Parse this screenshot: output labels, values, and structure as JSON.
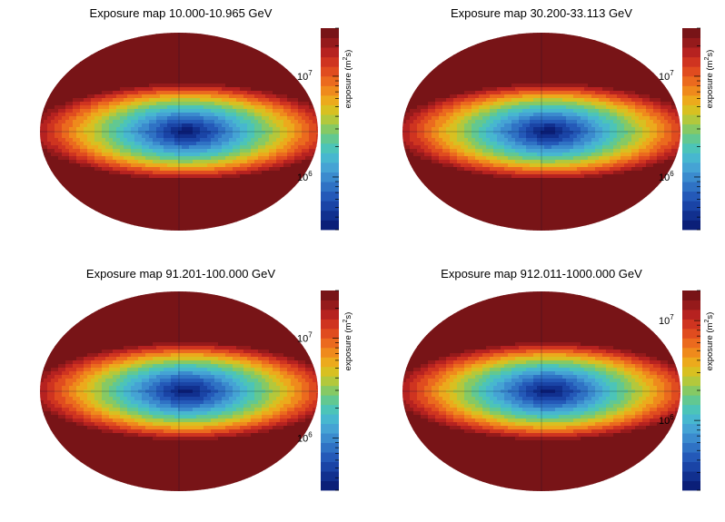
{
  "chart_data": [
    {
      "type": "heatmap",
      "projection": "aitoff-ellipse",
      "title": "Exposure map 10.000-10.965 GeV",
      "colorbar_label": "exposure (m",
      "colorbar_label_sup": "2",
      "colorbar_label_end": "s)",
      "zlim": [
        300000,
        30000000
      ],
      "log_scale": true,
      "colorbar_ticks": [
        {
          "value": 1000000,
          "base": "10",
          "exp": "6"
        },
        {
          "value": 10000000,
          "base": "10",
          "exp": "7"
        }
      ],
      "max_band_exposure": 30000000,
      "min_center_exposure": 300000
    },
    {
      "type": "heatmap",
      "projection": "aitoff-ellipse",
      "title": "Exposure map 30.200-33.113 GeV",
      "colorbar_label": "exposure (m",
      "colorbar_label_sup": "2",
      "colorbar_label_end": "s)",
      "zlim": [
        300000,
        30000000
      ],
      "log_scale": true,
      "colorbar_ticks": [
        {
          "value": 1000000,
          "base": "10",
          "exp": "6"
        },
        {
          "value": 10000000,
          "base": "10",
          "exp": "7"
        }
      ],
      "max_band_exposure": 30000000,
      "min_center_exposure": 300000
    },
    {
      "type": "heatmap",
      "projection": "aitoff-ellipse",
      "title": "Exposure map 91.201-100.000 GeV",
      "colorbar_label": "exposure (m",
      "colorbar_label_sup": "2",
      "colorbar_label_end": "s)",
      "zlim": [
        300000,
        30000000
      ],
      "log_scale": true,
      "colorbar_ticks": [
        {
          "value": 1000000,
          "base": "10",
          "exp": "6"
        },
        {
          "value": 10000000,
          "base": "10",
          "exp": "7"
        }
      ],
      "max_band_exposure": 30000000,
      "min_center_exposure": 300000
    },
    {
      "type": "heatmap",
      "projection": "aitoff-ellipse",
      "title": "Exposure map 912.011-1000.000 GeV",
      "colorbar_label": "exposure (m",
      "colorbar_label_sup": "2",
      "colorbar_label_end": "s)",
      "zlim": [
        200000,
        20000000
      ],
      "log_scale": true,
      "colorbar_ticks": [
        {
          "value": 1000000,
          "base": "10",
          "exp": "6"
        },
        {
          "value": 10000000,
          "base": "10",
          "exp": "7"
        }
      ],
      "max_band_exposure": 20000000,
      "min_center_exposure": 200000
    }
  ],
  "colors": {
    "palette": [
      "#0b1f78",
      "#11308f",
      "#1a44a6",
      "#2459b8",
      "#2f72c4",
      "#3b8bce",
      "#45a3d4",
      "#47b7cf",
      "#4cc4b8",
      "#62c891",
      "#86c964",
      "#b3c83c",
      "#d8c021",
      "#ecaa1c",
      "#ef8a1c",
      "#eb6a1e",
      "#e04c1f",
      "#cf3420",
      "#b62220",
      "#951a1b",
      "#781417"
    ]
  }
}
